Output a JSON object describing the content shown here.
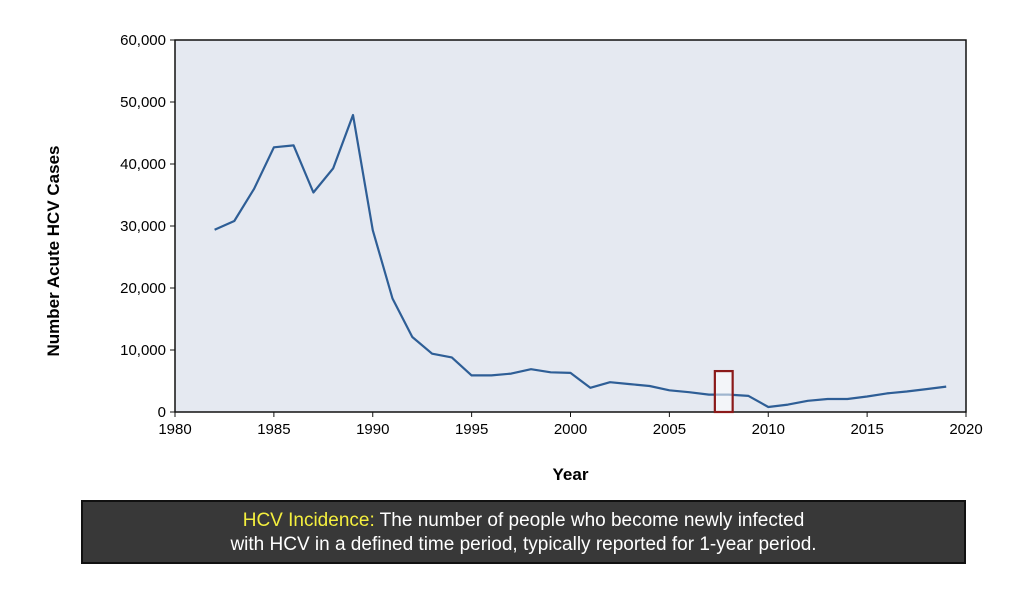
{
  "chart_data": {
    "type": "line",
    "title": "",
    "xlabel": "Year",
    "ylabel": "Number  Acute HCV Cases",
    "xlim": [
      1980,
      2020
    ],
    "ylim": [
      0,
      60000
    ],
    "xticks": [
      1980,
      1985,
      1990,
      1995,
      2000,
      2005,
      2010,
      2015,
      2020
    ],
    "xtick_labels": [
      "1980",
      "1985",
      "1990",
      "1995",
      "2000",
      "2005",
      "2010",
      "2015",
      "2020"
    ],
    "yticks": [
      0,
      10000,
      20000,
      30000,
      40000,
      50000,
      60000
    ],
    "ytick_labels": [
      "0",
      "10,000",
      "20,000",
      "30,000",
      "40,000",
      "50,000",
      "60,000"
    ],
    "grid": false,
    "series": [
      {
        "name": "Acute HCV Cases",
        "color": "#2e5e96",
        "x": [
          1982,
          1983,
          1984,
          1985,
          1986,
          1987,
          1988,
          1989,
          1990,
          1991,
          1992,
          1993,
          1994,
          1995,
          1996,
          1997,
          1998,
          1999,
          2000,
          2001,
          2002,
          2003,
          2004,
          2005,
          2006,
          2007,
          2008,
          2009,
          2010,
          2011,
          2012,
          2013,
          2014,
          2015,
          2016,
          2017,
          2018,
          2019
        ],
        "values": [
          29400,
          30800,
          36000,
          42700,
          43000,
          35400,
          39300,
          47900,
          29300,
          18300,
          12100,
          9400,
          8800,
          5900,
          5900,
          6200,
          6900,
          6400,
          6300,
          3900,
          4800,
          4500,
          4200,
          3500,
          3200,
          2800,
          2800,
          2600,
          800,
          1200,
          1800,
          2100,
          2100,
          2500,
          3000,
          3300,
          3700,
          4100
        ]
      }
    ],
    "highlight": {
      "x_range": [
        2007.3,
        2008.2
      ],
      "y_range": [
        0,
        6600
      ],
      "color": "#8b1a1a"
    },
    "plot_background": "#e5e9f1"
  },
  "caption": {
    "term": "HCV Incidence:",
    "line1_rest": " The number of people who become newly infected",
    "line2": "with HCV in a defined time period, typically reported for 1-year period."
  }
}
